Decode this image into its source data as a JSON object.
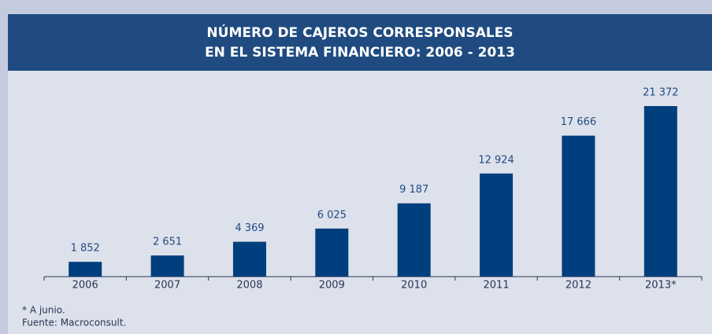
{
  "chart_data": {
    "type": "bar",
    "title": [
      "NÚMERO DE CAJEROS CORRESPONSALES",
      "EN EL SISTEMA FINANCIERO: 2006 - 2013"
    ],
    "categories": [
      "2006",
      "2007",
      "2008",
      "2009",
      "2010",
      "2011",
      "2012",
      "2013*"
    ],
    "values": [
      1852,
      2651,
      4369,
      6025,
      9187,
      12924,
      17666,
      21372
    ],
    "value_labels": [
      "1 852",
      "2 651",
      "4 369",
      "6 025",
      "9 187",
      "12 924",
      "17 666",
      "21 372"
    ],
    "color": "#003f7d",
    "notes": [
      "* A junio.",
      "Fuente: Macroconsult."
    ]
  }
}
